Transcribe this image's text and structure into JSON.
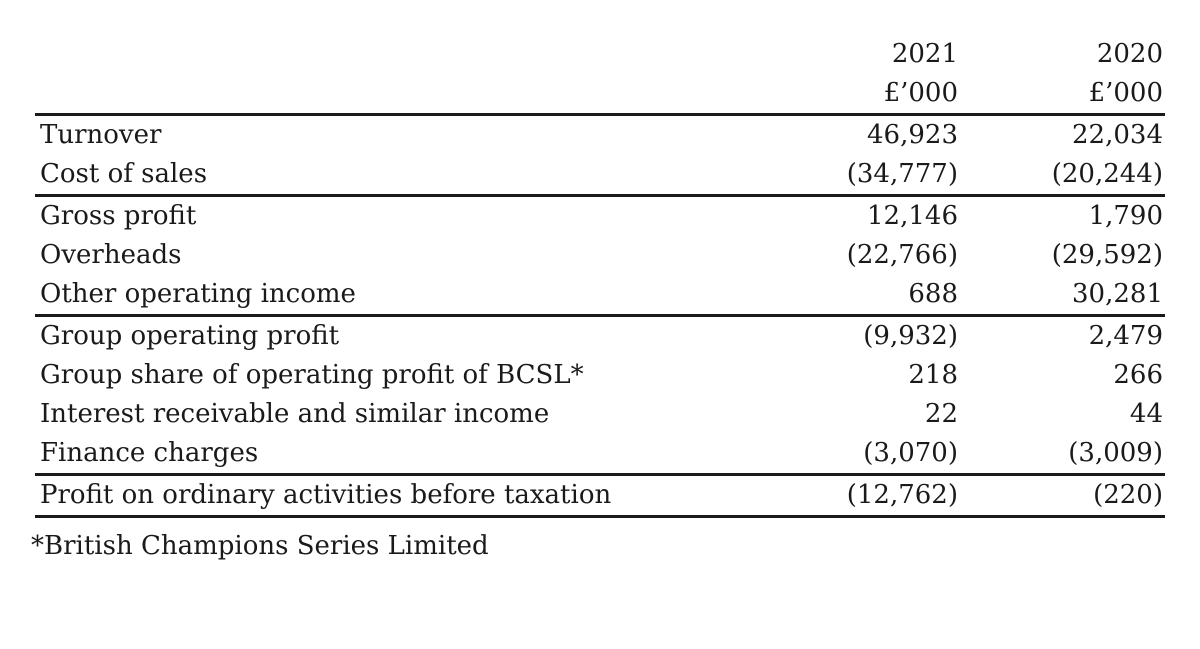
{
  "page": {
    "background": "#ffffff",
    "text_color": "#1a1a1a",
    "rule_color": "#1a1a1a"
  },
  "table": {
    "col_headers": {
      "y2021": "2021",
      "y2020": "2020"
    },
    "unit_label": "£’000",
    "rows": [
      {
        "label": "Turnover",
        "v2021": "46,923",
        "v2020": "22,034"
      },
      {
        "label": "Cost of sales",
        "v2021": "(34,777)",
        "v2020": "(20,244)"
      },
      {
        "label": "Gross profit",
        "v2021": "12,146",
        "v2020": "1,790"
      },
      {
        "label": "Overheads",
        "v2021": "(22,766)",
        "v2020": "(29,592)"
      },
      {
        "label": "Other operating income",
        "v2021": "688",
        "v2020": "30,281"
      },
      {
        "label": "Group operating profit",
        "v2021": "(9,932)",
        "v2020": "2,479"
      },
      {
        "label": "Group share of operating profit of BCSL*",
        "v2021": "218",
        "v2020": "266"
      },
      {
        "label": "Interest receivable and similar income",
        "v2021": "22",
        "v2020": "44"
      },
      {
        "label": "Finance charges",
        "v2021": "(3,070)",
        "v2020": "(3,009)"
      },
      {
        "label": "Profit on ordinary activities before taxation",
        "v2021": "(12,762)",
        "v2020": "(220)"
      }
    ],
    "footnote": "*British Champions Series Limited"
  }
}
